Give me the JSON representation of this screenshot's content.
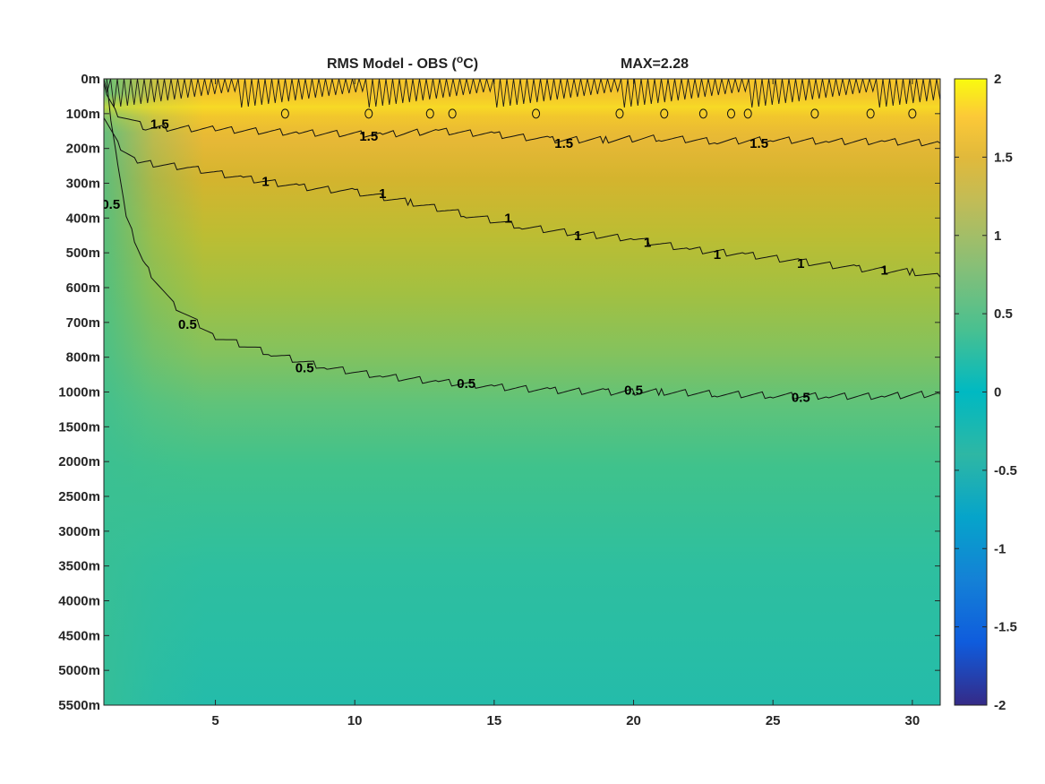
{
  "chart_data": {
    "type": "heatmap",
    "title": "RMS Model - OBS (",
    "title_sup": "o",
    "title_unit": "C)",
    "max_label": "MAX=2.28",
    "x_range": [
      1,
      31
    ],
    "x_ticks": [
      5,
      10,
      15,
      20,
      25,
      30
    ],
    "y_labels": [
      "0m",
      "100m",
      "200m",
      "300m",
      "400m",
      "500m",
      "600m",
      "700m",
      "800m",
      "1000m",
      "1500m",
      "2000m",
      "2500m",
      "3000m",
      "3500m",
      "4000m",
      "4500m",
      "5000m",
      "5500m"
    ],
    "colorbar": {
      "range": [
        -2,
        2
      ],
      "ticks": [
        "2",
        "1.5",
        "1",
        "0.5",
        "0",
        "-0.5",
        "-1",
        "-1.5",
        "-2"
      ],
      "colormap": "parula"
    },
    "contours": [
      {
        "level": 1.5,
        "label": "1.5",
        "points": [
          [
            1,
            0.2
          ],
          [
            1.5,
            1.0
          ],
          [
            2.5,
            1.4
          ],
          [
            5,
            1.45
          ],
          [
            8,
            1.55
          ],
          [
            11,
            1.6
          ],
          [
            13,
            1.5
          ],
          [
            15,
            1.6
          ],
          [
            17,
            1.75
          ],
          [
            19,
            1.75
          ],
          [
            21,
            1.7
          ],
          [
            23,
            1.8
          ],
          [
            25,
            1.75
          ],
          [
            27,
            1.8
          ],
          [
            29,
            1.8
          ],
          [
            31,
            1.85
          ]
        ],
        "labels_at": [
          [
            3,
            1.3
          ],
          [
            10.5,
            1.65
          ],
          [
            17.5,
            1.85
          ],
          [
            24.5,
            1.85
          ]
        ]
      },
      {
        "level": 1.0,
        "label": "1",
        "points": [
          [
            1,
            1.05
          ],
          [
            1.6,
            2.0
          ],
          [
            2.2,
            2.4
          ],
          [
            4,
            2.55
          ],
          [
            6,
            2.85
          ],
          [
            8,
            3.1
          ],
          [
            10,
            3.25
          ],
          [
            12,
            3.55
          ],
          [
            14,
            3.9
          ],
          [
            16,
            4.25
          ],
          [
            18,
            4.45
          ],
          [
            20,
            4.6
          ],
          [
            22,
            4.9
          ],
          [
            24,
            5.05
          ],
          [
            26,
            5.25
          ],
          [
            28,
            5.45
          ],
          [
            30,
            5.55
          ],
          [
            31,
            5.7
          ]
        ],
        "labels_at": [
          [
            6.8,
            2.95
          ],
          [
            11,
            3.3
          ],
          [
            15.5,
            4.0
          ],
          [
            18,
            4.5
          ],
          [
            20.5,
            4.7
          ],
          [
            23,
            5.05
          ],
          [
            26,
            5.3
          ],
          [
            29,
            5.5
          ]
        ]
      },
      {
        "level": 0.5,
        "label": "0.5",
        "points": [
          [
            1.1,
            0.0
          ],
          [
            1.25,
            1.2
          ],
          [
            1.5,
            2.5
          ],
          [
            1.8,
            4.0
          ],
          [
            2.5,
            5.4
          ],
          [
            3.5,
            6.5
          ],
          [
            5,
            7.4
          ],
          [
            7,
            7.9
          ],
          [
            9,
            8.3
          ],
          [
            11,
            8.55
          ],
          [
            13,
            8.7
          ],
          [
            15,
            8.85
          ],
          [
            17,
            8.95
          ],
          [
            19,
            9.0
          ],
          [
            21,
            9.0
          ],
          [
            23,
            9.05
          ],
          [
            25,
            9.1
          ],
          [
            27,
            9.12
          ],
          [
            29,
            9.12
          ],
          [
            31,
            9.05
          ]
        ],
        "labels_at": [
          [
            4,
            7.05
          ],
          [
            8.2,
            8.3
          ],
          [
            14,
            8.75
          ],
          [
            20,
            8.95
          ],
          [
            26,
            9.15
          ],
          [
            1.25,
            3.6
          ]
        ]
      }
    ],
    "peak_markers": [
      [
        7.5,
        1.0
      ],
      [
        10.5,
        1.0
      ],
      [
        12.7,
        1.0
      ],
      [
        13.5,
        1.0
      ],
      [
        16.5,
        1.0
      ],
      [
        19.5,
        1.0
      ],
      [
        21.1,
        1.0
      ],
      [
        22.5,
        1.0
      ],
      [
        23.5,
        1.0
      ],
      [
        24.1,
        1.0
      ],
      [
        26.5,
        1.0
      ],
      [
        28.5,
        1.0
      ],
      [
        30,
        1.0
      ]
    ]
  }
}
